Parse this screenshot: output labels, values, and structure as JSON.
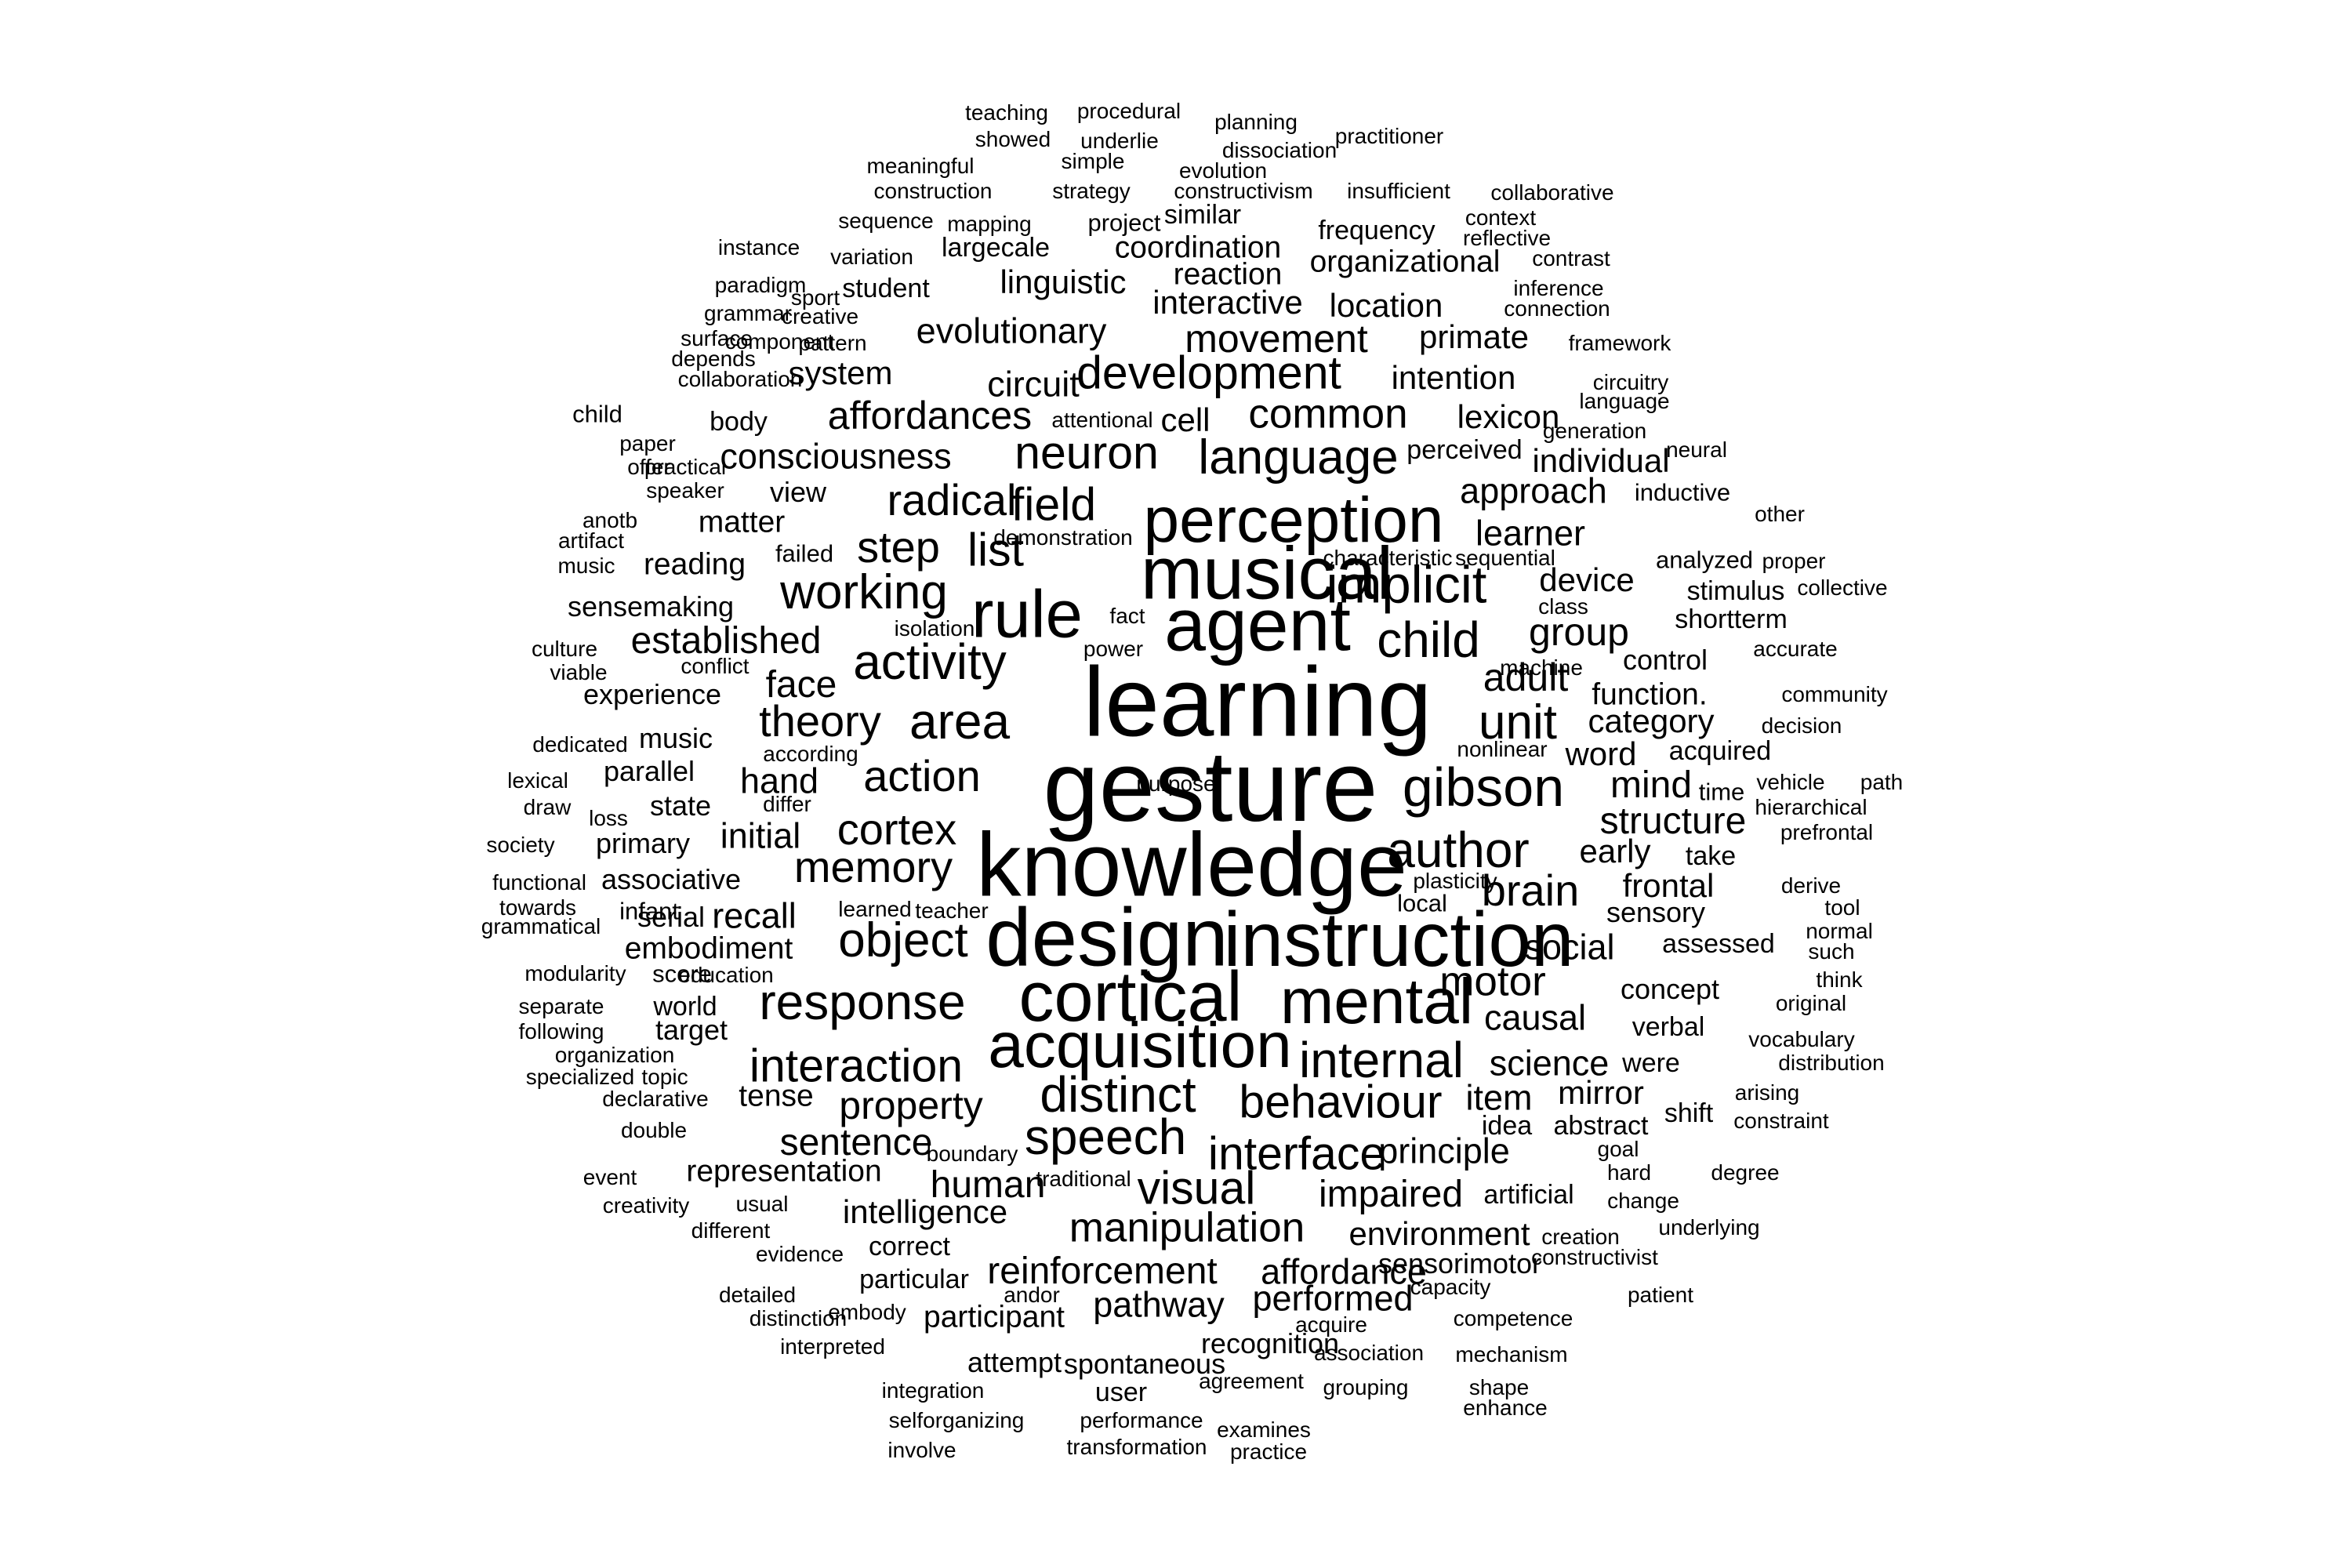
{
  "text_color": "#000000",
  "background_color": "#ffffff",
  "words": [
    {
      "text": "gesture",
      "weight": 100
    },
    {
      "text": "learning",
      "weight": 98
    },
    {
      "text": "knowledge",
      "weight": 90
    },
    {
      "text": "design",
      "weight": 82
    },
    {
      "text": "instruction",
      "weight": 72
    },
    {
      "text": "musical",
      "weight": 70
    },
    {
      "text": "agent",
      "weight": 70
    },
    {
      "text": "cortical",
      "weight": 66
    },
    {
      "text": "acquisition",
      "weight": 60
    },
    {
      "text": "mental",
      "weight": 60
    },
    {
      "text": "rule",
      "weight": 62
    },
    {
      "text": "perception",
      "weight": 60
    },
    {
      "text": "gibson",
      "weight": 58
    },
    {
      "text": "implicit",
      "weight": 56
    },
    {
      "text": "child",
      "weight": 54
    },
    {
      "text": "author",
      "weight": 54
    },
    {
      "text": "unit",
      "weight": 52
    },
    {
      "text": "speech",
      "weight": 54
    },
    {
      "text": "distinct",
      "weight": 54
    },
    {
      "text": "internal",
      "weight": 54
    },
    {
      "text": "response",
      "weight": 54
    },
    {
      "text": "area",
      "weight": 54
    },
    {
      "text": "activity",
      "weight": 54
    },
    {
      "text": "object",
      "weight": 52
    },
    {
      "text": "development",
      "weight": 50
    },
    {
      "text": "language",
      "weight": 52
    },
    {
      "text": "neuron",
      "weight": 50
    },
    {
      "text": "working",
      "weight": 52
    },
    {
      "text": "interaction",
      "weight": 50
    },
    {
      "text": "visual",
      "weight": 50
    },
    {
      "text": "interface",
      "weight": 50
    },
    {
      "text": "behaviour",
      "weight": 50
    },
    {
      "text": "memory",
      "weight": 48
    },
    {
      "text": "action",
      "weight": 48
    },
    {
      "text": "cortex",
      "weight": 48
    },
    {
      "text": "list",
      "weight": 50
    },
    {
      "text": "field",
      "weight": 50
    },
    {
      "text": "radical",
      "weight": 48
    },
    {
      "text": "step",
      "weight": 48
    },
    {
      "text": "theory",
      "weight": 48
    },
    {
      "text": "brain",
      "weight": 48
    },
    {
      "text": "motor",
      "weight": 46
    },
    {
      "text": "manipulation",
      "weight": 46
    },
    {
      "text": "movement",
      "weight": 44
    },
    {
      "text": "common",
      "weight": 46
    },
    {
      "text": "property",
      "weight": 44
    },
    {
      "text": "affordances",
      "weight": 44
    },
    {
      "text": "group",
      "weight": 44
    },
    {
      "text": "adult",
      "weight": 44
    },
    {
      "text": "established",
      "weight": 42
    },
    {
      "text": "reinforcement",
      "weight": 42
    },
    {
      "text": "mind",
      "weight": 42
    },
    {
      "text": "structure",
      "weight": 42
    },
    {
      "text": "face",
      "weight": 42
    },
    {
      "text": "human",
      "weight": 42
    },
    {
      "text": "impaired",
      "weight": 42
    },
    {
      "text": "sentence",
      "weight": 42
    },
    {
      "text": "science",
      "weight": 40
    },
    {
      "text": "causal",
      "weight": 40
    },
    {
      "text": "learner",
      "weight": 40
    },
    {
      "text": "approach",
      "weight": 40
    },
    {
      "text": "affordance",
      "weight": 40
    },
    {
      "text": "performed",
      "weight": 40
    },
    {
      "text": "principle",
      "weight": 40
    },
    {
      "text": "pathway",
      "weight": 40
    },
    {
      "text": "item",
      "weight": 40
    },
    {
      "text": "hand",
      "weight": 40
    },
    {
      "text": "recall",
      "weight": 40
    },
    {
      "text": "initial",
      "weight": 40
    },
    {
      "text": "social",
      "weight": 40
    },
    {
      "text": "consciousness",
      "weight": 40
    },
    {
      "text": "evolutionary",
      "weight": 40
    },
    {
      "text": "circuit",
      "weight": 40
    },
    {
      "text": "frontal",
      "weight": 38
    },
    {
      "text": "early",
      "weight": 38
    },
    {
      "text": "device",
      "weight": 38
    },
    {
      "text": "word",
      "weight": 38
    },
    {
      "text": "category",
      "weight": 38
    },
    {
      "text": "environment",
      "weight": 38
    },
    {
      "text": "intelligence",
      "weight": 38
    },
    {
      "text": "embodiment",
      "weight": 36
    },
    {
      "text": "individual",
      "weight": 38
    },
    {
      "text": "intention",
      "weight": 38
    },
    {
      "text": "primate",
      "weight": 38
    },
    {
      "text": "cell",
      "weight": 38
    },
    {
      "text": "lexicon",
      "weight": 38
    },
    {
      "text": "system",
      "weight": 38
    },
    {
      "text": "linguistic",
      "weight": 38
    },
    {
      "text": "location",
      "weight": 38
    },
    {
      "text": "interactive",
      "weight": 38
    },
    {
      "text": "mirror",
      "weight": 38
    },
    {
      "text": "participant",
      "weight": 36
    },
    {
      "text": "representation",
      "weight": 36
    },
    {
      "text": "tense",
      "weight": 36
    },
    {
      "text": "reaction",
      "weight": 36
    },
    {
      "text": "organizational",
      "weight": 36
    },
    {
      "text": "coordination",
      "weight": 36
    },
    {
      "text": "function.",
      "weight": 36
    },
    {
      "text": "concept",
      "weight": 34
    },
    {
      "text": "matter",
      "weight": 36
    },
    {
      "text": "reading",
      "weight": 36
    },
    {
      "text": "view",
      "weight": 34
    },
    {
      "text": "sensemaking",
      "weight": 34
    },
    {
      "text": "experience",
      "weight": 34
    },
    {
      "text": "music",
      "weight": 34
    },
    {
      "text": "parallel",
      "weight": 34
    },
    {
      "text": "state",
      "weight": 34
    },
    {
      "text": "primary",
      "weight": 34
    },
    {
      "text": "associative",
      "weight": 34
    },
    {
      "text": "serial",
      "weight": 34
    },
    {
      "text": "world",
      "weight": 32
    },
    {
      "text": "target",
      "weight": 34
    },
    {
      "text": "control",
      "weight": 34
    },
    {
      "text": "sensory",
      "weight": 34
    },
    {
      "text": "verbal",
      "weight": 32
    },
    {
      "text": "were",
      "weight": 32
    },
    {
      "text": "shift",
      "weight": 32
    },
    {
      "text": "abstract",
      "weight": 32
    },
    {
      "text": "artificial",
      "weight": 32
    },
    {
      "text": "idea",
      "weight": 32
    },
    {
      "text": "sensorimotor",
      "weight": 34
    },
    {
      "text": "recognition",
      "weight": 34
    },
    {
      "text": "attempt",
      "weight": 34
    },
    {
      "text": "spontaneous",
      "weight": 34
    },
    {
      "text": "user",
      "weight": 32
    },
    {
      "text": "correct",
      "weight": 32
    },
    {
      "text": "particular",
      "weight": 32
    },
    {
      "text": "student",
      "weight": 32
    },
    {
      "text": "body",
      "weight": 32
    },
    {
      "text": "perceived",
      "weight": 32
    },
    {
      "text": "frequency",
      "weight": 32
    },
    {
      "text": "largecale",
      "weight": 32
    },
    {
      "text": "similar",
      "weight": 32
    },
    {
      "text": "project",
      "weight": 30
    },
    {
      "text": "take",
      "weight": 32
    },
    {
      "text": "time",
      "weight": 30
    },
    {
      "text": "assessed",
      "weight": 32
    },
    {
      "text": "acquired",
      "weight": 32
    },
    {
      "text": "shortterm",
      "weight": 32
    },
    {
      "text": "stimulus",
      "weight": 32
    },
    {
      "text": "analyzed",
      "weight": 30
    },
    {
      "text": "inductive",
      "weight": 30
    },
    {
      "text": "score",
      "weight": 30
    },
    {
      "text": "infant",
      "weight": 30
    },
    {
      "text": "failed",
      "weight": 30
    },
    {
      "text": "local",
      "weight": 30
    },
    {
      "text": "learned",
      "weight": 28
    },
    {
      "text": "pattern",
      "weight": 28
    },
    {
      "text": "speaker",
      "weight": 28
    },
    {
      "text": "conflict",
      "weight": 28
    },
    {
      "text": "teaching",
      "weight": 28
    },
    {
      "text": "procedural",
      "weight": 28
    },
    {
      "text": "planning",
      "weight": 28
    },
    {
      "text": "practitioner",
      "weight": 28
    },
    {
      "text": "showed",
      "weight": 28
    },
    {
      "text": "underlie",
      "weight": 28
    },
    {
      "text": "dissociation",
      "weight": 28
    },
    {
      "text": "meaningful",
      "weight": 28
    },
    {
      "text": "simple",
      "weight": 28
    },
    {
      "text": "evolution",
      "weight": 28
    },
    {
      "text": "construction",
      "weight": 28
    },
    {
      "text": "strategy",
      "weight": 28
    },
    {
      "text": "constructivism",
      "weight": 28
    },
    {
      "text": "insufficient",
      "weight": 28
    },
    {
      "text": "collaborative",
      "weight": 28
    },
    {
      "text": "sequence",
      "weight": 28
    },
    {
      "text": "mapping",
      "weight": 28
    },
    {
      "text": "context",
      "weight": 28
    },
    {
      "text": "reflective",
      "weight": 28
    },
    {
      "text": "instance",
      "weight": 28
    },
    {
      "text": "variation",
      "weight": 28
    },
    {
      "text": "contrast",
      "weight": 28
    },
    {
      "text": "paradigm",
      "weight": 28
    },
    {
      "text": "sport",
      "weight": 28
    },
    {
      "text": "inference",
      "weight": 28
    },
    {
      "text": "grammar",
      "weight": 28
    },
    {
      "text": "creative",
      "weight": 28
    },
    {
      "text": "connection",
      "weight": 28
    },
    {
      "text": "surface",
      "weight": 28
    },
    {
      "text": "component",
      "weight": 28
    },
    {
      "text": "framework",
      "weight": 28
    },
    {
      "text": "depends",
      "weight": 28
    },
    {
      "text": "collaboration",
      "weight": 28
    },
    {
      "text": "circuitry",
      "weight": 28
    },
    {
      "text": "language",
      "weight": 28
    },
    {
      "text": "child",
      "weight": 30
    },
    {
      "text": "attentional",
      "weight": 28
    },
    {
      "text": "generation",
      "weight": 28
    },
    {
      "text": "paper",
      "weight": 28
    },
    {
      "text": "neural",
      "weight": 28
    },
    {
      "text": "offer",
      "weight": 28
    },
    {
      "text": "practical",
      "weight": 28
    },
    {
      "text": "other",
      "weight": 28
    },
    {
      "text": "anotb",
      "weight": 28
    },
    {
      "text": "demonstration",
      "weight": 28
    },
    {
      "text": "artifact",
      "weight": 28
    },
    {
      "text": "characteristic",
      "weight": 28
    },
    {
      "text": "sequential",
      "weight": 28
    },
    {
      "text": "proper",
      "weight": 28
    },
    {
      "text": "music",
      "weight": 28
    },
    {
      "text": "collective",
      "weight": 28
    },
    {
      "text": "class",
      "weight": 28
    },
    {
      "text": "fact",
      "weight": 28
    },
    {
      "text": "isolation",
      "weight": 28
    },
    {
      "text": "culture",
      "weight": 28
    },
    {
      "text": "power",
      "weight": 28
    },
    {
      "text": "accurate",
      "weight": 28
    },
    {
      "text": "viable",
      "weight": 28
    },
    {
      "text": "machine",
      "weight": 28
    },
    {
      "text": "community",
      "weight": 28
    },
    {
      "text": "decision",
      "weight": 28
    },
    {
      "text": "dedicated",
      "weight": 28
    },
    {
      "text": "according",
      "weight": 28
    },
    {
      "text": "nonlinear",
      "weight": 28
    },
    {
      "text": "lexical",
      "weight": 28
    },
    {
      "text": "vehicle",
      "weight": 28
    },
    {
      "text": "path",
      "weight": 28
    },
    {
      "text": "draw",
      "weight": 28
    },
    {
      "text": "differ",
      "weight": 28
    },
    {
      "text": "loss",
      "weight": 28
    },
    {
      "text": "hierarchical",
      "weight": 28
    },
    {
      "text": "prefrontal",
      "weight": 28
    },
    {
      "text": "society",
      "weight": 28
    },
    {
      "text": "plasticity",
      "weight": 28
    },
    {
      "text": "derive",
      "weight": 28
    },
    {
      "text": "functional",
      "weight": 28
    },
    {
      "text": "teacher",
      "weight": 28
    },
    {
      "text": "tool",
      "weight": 28
    },
    {
      "text": "towards",
      "weight": 28
    },
    {
      "text": "normal",
      "weight": 28
    },
    {
      "text": "grammatical",
      "weight": 28
    },
    {
      "text": "such",
      "weight": 28
    },
    {
      "text": "modularity",
      "weight": 28
    },
    {
      "text": "education",
      "weight": 28
    },
    {
      "text": "think",
      "weight": 28
    },
    {
      "text": "separate",
      "weight": 28
    },
    {
      "text": "original",
      "weight": 28
    },
    {
      "text": "following",
      "weight": 28
    },
    {
      "text": "vocabulary",
      "weight": 28
    },
    {
      "text": "organization",
      "weight": 28
    },
    {
      "text": "distribution",
      "weight": 28
    },
    {
      "text": "specialized",
      "weight": 28
    },
    {
      "text": "topic",
      "weight": 28
    },
    {
      "text": "arising",
      "weight": 28
    },
    {
      "text": "declarative",
      "weight": 28
    },
    {
      "text": "constraint",
      "weight": 28
    },
    {
      "text": "double",
      "weight": 28
    },
    {
      "text": "boundary",
      "weight": 28
    },
    {
      "text": "goal",
      "weight": 28
    },
    {
      "text": "event",
      "weight": 28
    },
    {
      "text": "traditional",
      "weight": 28
    },
    {
      "text": "hard",
      "weight": 28
    },
    {
      "text": "degree",
      "weight": 28
    },
    {
      "text": "creativity",
      "weight": 28
    },
    {
      "text": "usual",
      "weight": 28
    },
    {
      "text": "change",
      "weight": 28
    },
    {
      "text": "different",
      "weight": 28
    },
    {
      "text": "evidence",
      "weight": 28
    },
    {
      "text": "underlying",
      "weight": 28
    },
    {
      "text": "detailed",
      "weight": 28
    },
    {
      "text": "creation",
      "weight": 28
    },
    {
      "text": "constructivist",
      "weight": 28
    },
    {
      "text": "distinction",
      "weight": 28
    },
    {
      "text": "andor",
      "weight": 28
    },
    {
      "text": "capacity",
      "weight": 28
    },
    {
      "text": "patient",
      "weight": 28
    },
    {
      "text": "embody",
      "weight": 28
    },
    {
      "text": "competence",
      "weight": 28
    },
    {
      "text": "acquire",
      "weight": 28
    },
    {
      "text": "interpreted",
      "weight": 28
    },
    {
      "text": "association",
      "weight": 28
    },
    {
      "text": "mechanism",
      "weight": 28
    },
    {
      "text": "agreement",
      "weight": 28
    },
    {
      "text": "integration",
      "weight": 28
    },
    {
      "text": "grouping",
      "weight": 28
    },
    {
      "text": "shape",
      "weight": 28
    },
    {
      "text": "enhance",
      "weight": 28
    },
    {
      "text": "selforganizing",
      "weight": 28
    },
    {
      "text": "performance",
      "weight": 28
    },
    {
      "text": "examines",
      "weight": 28
    },
    {
      "text": "involve",
      "weight": 28
    },
    {
      "text": "transformation",
      "weight": 28
    },
    {
      "text": "practice",
      "weight": 28
    },
    {
      "text": "purpose",
      "weight": 28
    }
  ]
}
